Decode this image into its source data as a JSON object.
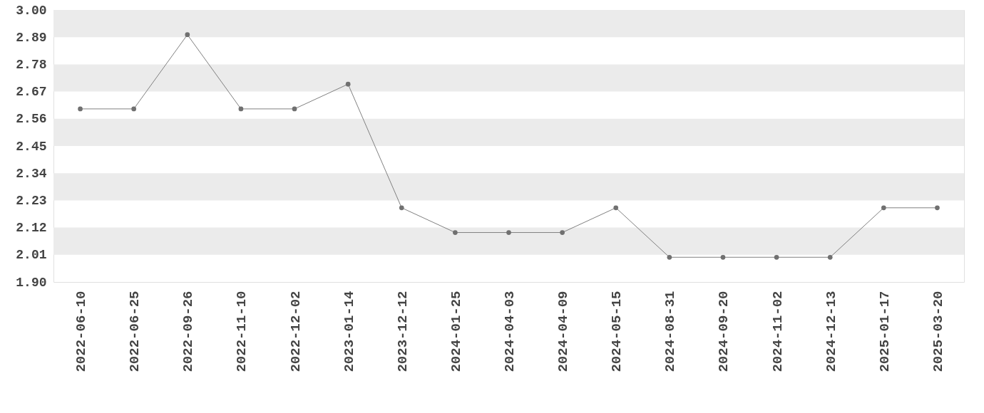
{
  "chart_data": {
    "type": "line",
    "categories": [
      "2022-06-10",
      "2022-06-25",
      "2022-09-26",
      "2022-11-10",
      "2022-12-02",
      "2023-01-14",
      "2023-12-12",
      "2024-01-25",
      "2024-04-03",
      "2024-04-09",
      "2024-05-15",
      "2024-08-31",
      "2024-09-20",
      "2024-11-02",
      "2024-12-13",
      "2025-01-17",
      "2025-03-20"
    ],
    "series": [
      {
        "color": "#808080",
        "values": [
          2.6,
          2.6,
          2.9,
          2.6,
          2.6,
          2.7,
          2.2,
          2.1,
          2.1,
          2.1,
          2.2,
          2.0,
          2.0,
          2.0,
          2.0,
          2.2,
          2.2
        ]
      }
    ],
    "ylim": [
      1.9,
      3.0
    ],
    "yticks": [
      {
        "value": 1.9,
        "label": "1.90"
      },
      {
        "value": 2.01,
        "label": "2.01"
      },
      {
        "value": 2.12,
        "label": "2.12"
      },
      {
        "value": 2.23,
        "label": "2.23"
      },
      {
        "value": 2.34,
        "label": "2.34"
      },
      {
        "value": 2.45,
        "label": "2.45"
      },
      {
        "value": 2.56,
        "label": "2.56"
      },
      {
        "value": 2.67,
        "label": "2.67"
      },
      {
        "value": 2.78,
        "label": "2.78"
      },
      {
        "value": 2.89,
        "label": "2.89"
      },
      {
        "value": 3.0,
        "label": "3.00"
      }
    ],
    "bands": [
      {
        "axis": "y",
        "from": 2.89,
        "to": 3.0,
        "color": "#ebebeb"
      },
      {
        "axis": "y",
        "from": 2.67,
        "to": 2.78,
        "color": "#ebebeb"
      },
      {
        "axis": "y",
        "from": 2.45,
        "to": 2.56,
        "color": "#ebebeb"
      },
      {
        "axis": "y",
        "from": 2.23,
        "to": 2.34,
        "color": "#ebebeb"
      },
      {
        "axis": "y",
        "from": 2.01,
        "to": 2.12,
        "color": "#ebebeb"
      }
    ],
    "marker": "circle",
    "line_style": "solid",
    "grid": false
  }
}
